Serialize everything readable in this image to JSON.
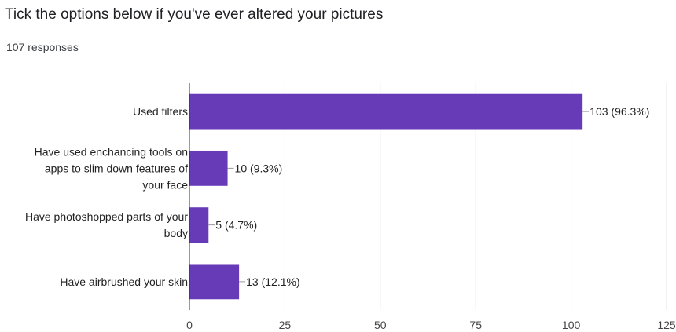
{
  "header": {
    "title": "Tick the options below if you've ever altered your pictures",
    "responses": "107 responses"
  },
  "chart_data": {
    "type": "bar",
    "orientation": "horizontal",
    "title": "Tick the options below if you've ever altered your pictures",
    "categories": [
      [
        "Used filters"
      ],
      [
        "Have used enchancing tools on",
        "apps to slim down features of",
        "your face"
      ],
      [
        "Have photoshopped parts of your",
        "body"
      ],
      [
        "Have airbrushed your skin"
      ]
    ],
    "values": [
      103,
      10,
      5,
      13
    ],
    "value_labels": [
      "103 (96.3%)",
      "10 (9.3%)",
      "5 (4.7%)",
      "13 (12.1%)"
    ],
    "xlim": [
      0,
      125
    ],
    "xticks": [
      0,
      25,
      50,
      75,
      100,
      125
    ],
    "grid": true,
    "bar_color": "#673ab7"
  }
}
